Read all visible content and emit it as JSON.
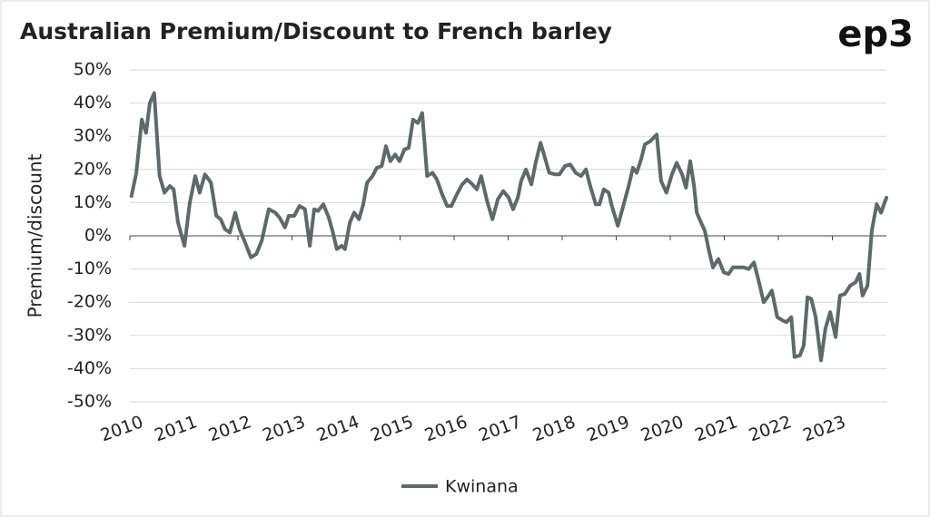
{
  "logo": "ep3",
  "chart_data": {
    "type": "line",
    "title": "Australian Premium/Discount to French barley",
    "y_label": "Premium/discount",
    "grid": true,
    "legend": "bottom",
    "xlim": [
      2010,
      2024
    ],
    "xticks": [
      2010,
      2011,
      2012,
      2013,
      2014,
      2015,
      2016,
      2017,
      2018,
      2019,
      2020,
      2021,
      2022,
      2023
    ],
    "ylim": [
      -50,
      50
    ],
    "yticks": [
      {
        "value": -50,
        "label": "-50%"
      },
      {
        "value": -40,
        "label": "-40%"
      },
      {
        "value": -30,
        "label": "-30%"
      },
      {
        "value": -20,
        "label": "-20%"
      },
      {
        "value": -10,
        "label": "-10%"
      },
      {
        "value": 0,
        "label": "0%"
      },
      {
        "value": 10,
        "label": "10%"
      },
      {
        "value": 20,
        "label": "20%"
      },
      {
        "value": 30,
        "label": "30%"
      },
      {
        "value": 40,
        "label": "40%"
      },
      {
        "value": 50,
        "label": "50%"
      }
    ],
    "x": [
      2010.03,
      2010.12,
      2010.22,
      2010.3,
      2010.37,
      2010.45,
      2010.55,
      2010.64,
      2010.74,
      2010.81,
      2010.89,
      2011.01,
      2011.11,
      2011.21,
      2011.29,
      2011.39,
      2011.5,
      2011.6,
      2011.68,
      2011.76,
      2011.85,
      2011.95,
      2012.03,
      2012.12,
      2012.24,
      2012.34,
      2012.44,
      2012.57,
      2012.69,
      2012.77,
      2012.87,
      2012.94,
      2013.04,
      2013.14,
      2013.24,
      2013.33,
      2013.41,
      2013.48,
      2013.58,
      2013.68,
      2013.75,
      2013.83,
      2013.92,
      2013.98,
      2014.07,
      2014.15,
      2014.24,
      2014.32,
      2014.39,
      2014.49,
      2014.57,
      2014.66,
      2014.74,
      2014.82,
      2014.91,
      2014.99,
      2015.08,
      2015.16,
      2015.24,
      2015.33,
      2015.41,
      2015.5,
      2015.6,
      2015.68,
      2015.78,
      2015.87,
      2015.95,
      2016.05,
      2016.15,
      2016.24,
      2016.34,
      2016.42,
      2016.5,
      2016.61,
      2016.71,
      2016.81,
      2016.91,
      2017.01,
      2017.09,
      2017.18,
      2017.24,
      2017.33,
      2017.43,
      2017.51,
      2017.6,
      2017.68,
      2017.76,
      2017.87,
      2017.95,
      2018.05,
      2018.15,
      2018.25,
      2018.35,
      2018.44,
      2018.52,
      2018.62,
      2018.69,
      2018.77,
      2018.86,
      2018.92,
      2019.03,
      2019.13,
      2019.23,
      2019.31,
      2019.38,
      2019.46,
      2019.53,
      2019.63,
      2019.75,
      2019.83,
      2019.93,
      2020.03,
      2020.12,
      2020.22,
      2020.29,
      2020.37,
      2020.44,
      2020.49,
      2020.57,
      2020.64,
      2020.71,
      2020.79,
      2020.89,
      2020.99,
      2021.08,
      2021.16,
      2021.26,
      2021.36,
      2021.45,
      2021.55,
      2021.65,
      2021.73,
      2021.82,
      2021.88,
      2021.98,
      2022.08,
      2022.15,
      2022.24,
      2022.3,
      2022.4,
      2022.47,
      2022.54,
      2022.61,
      2022.69,
      2022.79,
      2022.87,
      2022.96,
      2023.06,
      2023.14,
      2023.23,
      2023.33,
      2023.43,
      2023.5,
      2023.56,
      2023.65,
      2023.73,
      2023.82,
      2023.9,
      2024.0
    ],
    "series": [
      {
        "name": "Kwinana",
        "color": "#5b6a6a",
        "values": [
          12,
          19,
          35,
          31,
          40,
          43,
          18,
          13,
          15,
          14,
          4,
          -3,
          10,
          18,
          13,
          18.5,
          16,
          6,
          5,
          2,
          1,
          7,
          2,
          -1.5,
          -6.5,
          -5.5,
          -1.5,
          8,
          7,
          5.5,
          2.5,
          6,
          6,
          9,
          8,
          -3,
          8,
          7.5,
          9.5,
          5.5,
          1.5,
          -4,
          -3,
          -4,
          4,
          7,
          5,
          9.5,
          16,
          18,
          20.5,
          21,
          27,
          22.5,
          24.5,
          22.5,
          26,
          26.5,
          35,
          34,
          37,
          18,
          19,
          17,
          12.5,
          9,
          9,
          12.5,
          15.5,
          17,
          15.5,
          14,
          18,
          10.5,
          5,
          11,
          13.5,
          11.5,
          8,
          11.5,
          16.5,
          20,
          15.5,
          22,
          28,
          23.5,
          19,
          18.5,
          18.5,
          21,
          21.5,
          19,
          18,
          20,
          15,
          9.5,
          9.5,
          14,
          13,
          9,
          3,
          9,
          15,
          20.5,
          19,
          23,
          27.5,
          28.5,
          30.5,
          16.5,
          13,
          18.5,
          22,
          18.5,
          14.5,
          22.5,
          15,
          7,
          4,
          1.5,
          -4,
          -9.5,
          -7,
          -11,
          -11.5,
          -9.5,
          -9.5,
          -9.5,
          -10,
          -8,
          -14.5,
          -20,
          -18,
          -16.5,
          -24.5,
          -25.5,
          -26,
          -24.5,
          -36.5,
          -36,
          -33,
          -18.5,
          -19,
          -24.5,
          -37.5,
          -28,
          -23,
          -30.5,
          -18,
          -17.5,
          -15,
          -14,
          -11.5,
          -18,
          -15,
          1.5,
          9.5,
          7,
          11.5
        ]
      }
    ]
  }
}
